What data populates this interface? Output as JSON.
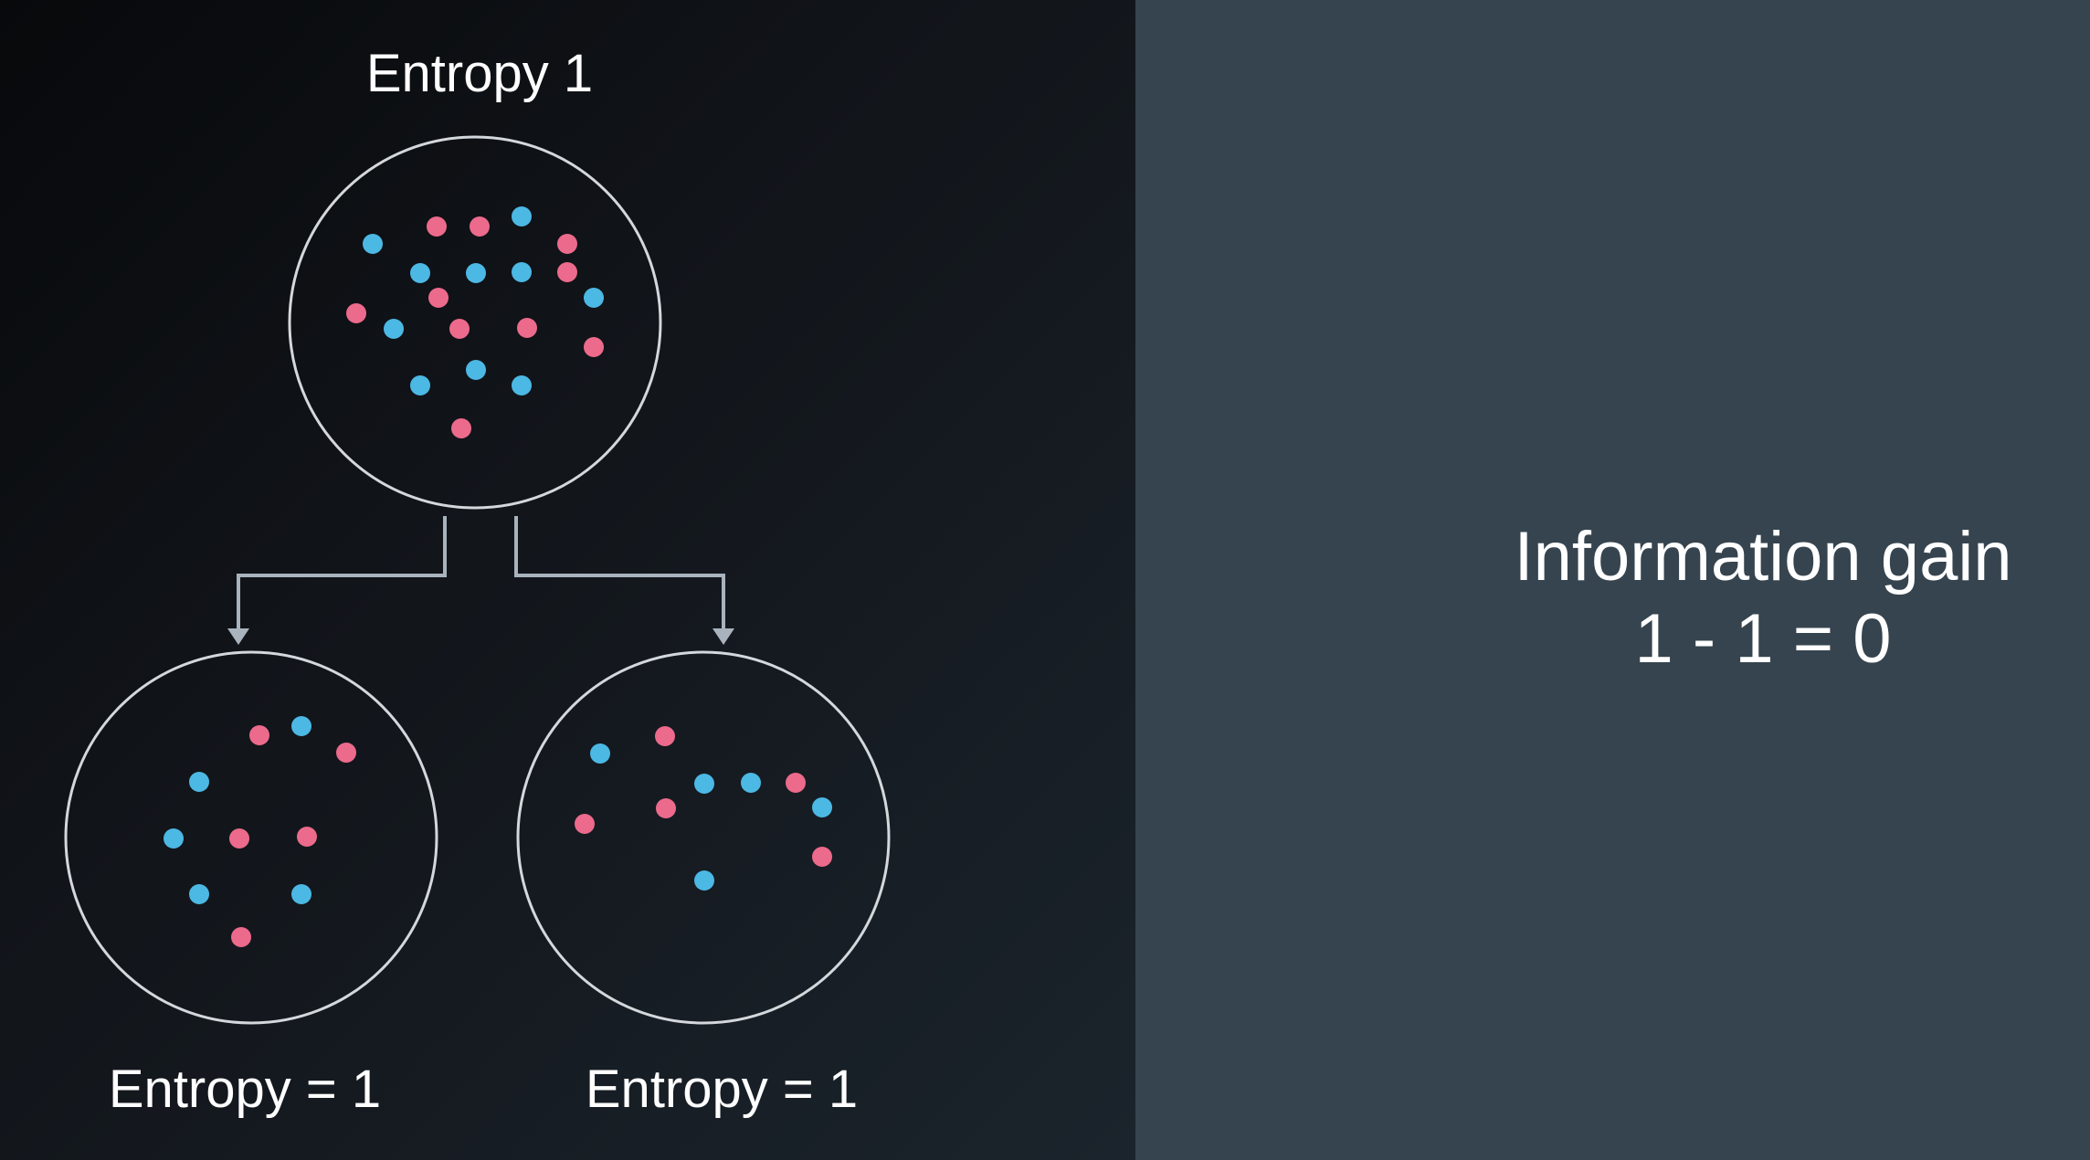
{
  "colors": {
    "blue_dot": "#4cb8e4",
    "pink_dot": "#ec6a8c",
    "circle_stroke": "#d4d8dc",
    "arrow": "#a9b3bd",
    "right_panel": "#36444f"
  },
  "diagram": {
    "parent": {
      "label": "Entropy 1",
      "blue_count": 10,
      "pink_count": 10
    },
    "left_child": {
      "label": "Entropy = 1",
      "blue_count": 5,
      "pink_count": 5
    },
    "right_child": {
      "label": "Entropy = 1",
      "blue_count": 5,
      "pink_count": 5
    }
  },
  "info": {
    "title": "Information gain",
    "formula": "1 - 1 = 0"
  }
}
